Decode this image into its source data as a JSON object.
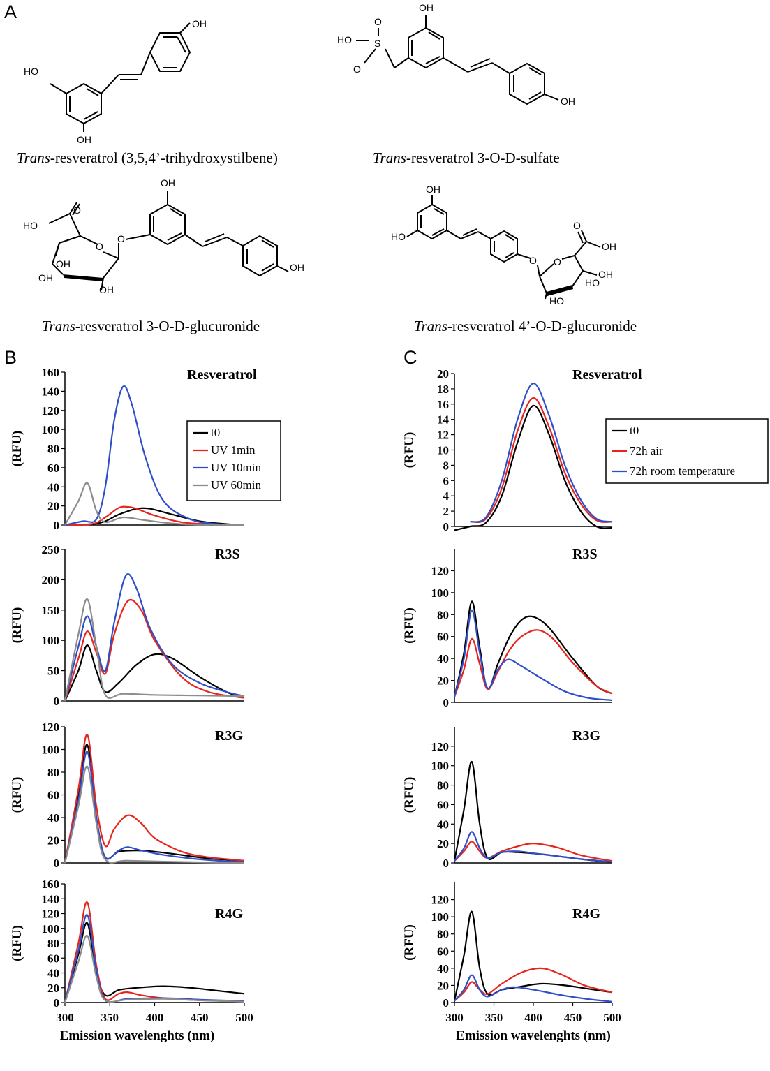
{
  "panels": {
    "a": "A",
    "b": "B",
    "c": "C"
  },
  "structures": [
    {
      "italic": "Trans",
      "rest": "-resveratrol (3,5,4’-trihydroxystilbene)",
      "atoms": [
        "OH",
        "HO",
        "OH"
      ]
    },
    {
      "italic": "Trans",
      "rest": "-resveratrol 3-O-D-sulfate",
      "atoms": [
        "OH",
        "HO",
        "S",
        "O",
        "O",
        "OH"
      ]
    },
    {
      "italic": "Trans",
      "rest": "-resveratrol 3-O-D-glucuronide",
      "atoms": [
        "OH",
        "HO",
        "O",
        "O",
        "O",
        "OH",
        "OH",
        "OH",
        "OH"
      ]
    },
    {
      "italic": "Trans",
      "rest": "-resveratrol 4’-O-D-glucuronide",
      "atoms": [
        "OH",
        "HO",
        "O",
        "O",
        "O",
        "OH",
        "HO",
        "HO",
        "OH"
      ]
    }
  ],
  "legend_b": [
    "t0",
    "UV  1min",
    "UV  10min",
    "UV  60min"
  ],
  "legend_c": [
    "t0",
    "72h air",
    "72h  room temperature"
  ],
  "colors": {
    "black": "#000000",
    "red": "#e8251c",
    "blue": "#2f4fc8",
    "gray": "#8c8c8c"
  },
  "chart_data": [
    {
      "type": "line",
      "panel": "B",
      "title": "Resveratrol",
      "xlabel": "",
      "ylabel": "(RFU)",
      "xlim": [
        300,
        500
      ],
      "ylim": [
        0,
        160
      ],
      "yticks": [
        "0",
        "20",
        "40",
        "60",
        "80",
        "100",
        "120",
        "140",
        "160"
      ],
      "series": [
        {
          "name": "t0",
          "color": "#000000",
          "x": [
            300,
            330,
            345,
            360,
            380,
            395,
            420,
            450,
            480,
            500
          ],
          "y": [
            0,
            1,
            4,
            11,
            17,
            17,
            11,
            4,
            1,
            0
          ]
        },
        {
          "name": "UV  1min",
          "color": "#e8251c",
          "x": [
            300,
            330,
            345,
            360,
            370,
            380,
            400,
            430,
            460,
            500
          ],
          "y": [
            0,
            1,
            8,
            18,
            19,
            17,
            10,
            3,
            1,
            0
          ]
        },
        {
          "name": "UV  10min",
          "color": "#2f4fc8",
          "x": [
            300,
            320,
            335,
            345,
            355,
            365,
            375,
            390,
            410,
            440,
            470,
            500
          ],
          "y": [
            0,
            4,
            6,
            40,
            110,
            145,
            125,
            70,
            25,
            6,
            1,
            0
          ]
        },
        {
          "name": "UV  60min",
          "color": "#8c8c8c",
          "x": [
            300,
            315,
            325,
            335,
            345,
            365,
            390,
            430,
            500
          ],
          "y": [
            0,
            25,
            44,
            15,
            3,
            8,
            5,
            1,
            0
          ]
        }
      ]
    },
    {
      "type": "line",
      "panel": "B",
      "title": "R3S",
      "xlabel": "",
      "ylabel": "(RFU)",
      "xlim": [
        300,
        500
      ],
      "ylim": [
        0,
        250
      ],
      "yticks": [
        "0",
        "50",
        "100",
        "150",
        "200",
        "250"
      ],
      "series": [
        {
          "name": "t0",
          "color": "#000000",
          "x": [
            300,
            315,
            325,
            335,
            345,
            360,
            380,
            400,
            420,
            450,
            480,
            500
          ],
          "y": [
            0,
            50,
            92,
            50,
            15,
            30,
            60,
            77,
            70,
            40,
            15,
            5
          ]
        },
        {
          "name": "UV  1min",
          "color": "#e8251c",
          "x": [
            300,
            315,
            325,
            335,
            345,
            355,
            370,
            385,
            400,
            430,
            460,
            500
          ],
          "y": [
            0,
            70,
            115,
            80,
            45,
            110,
            165,
            150,
            100,
            40,
            15,
            5
          ]
        },
        {
          "name": "UV  10min",
          "color": "#2f4fc8",
          "x": [
            300,
            315,
            325,
            335,
            345,
            355,
            368,
            380,
            395,
            420,
            450,
            480,
            500
          ],
          "y": [
            0,
            90,
            140,
            90,
            50,
            130,
            207,
            185,
            120,
            60,
            30,
            15,
            8
          ]
        },
        {
          "name": "UV  60min",
          "color": "#8c8c8c",
          "x": [
            300,
            315,
            325,
            335,
            345,
            365,
            400,
            450,
            500
          ],
          "y": [
            0,
            110,
            168,
            90,
            10,
            12,
            10,
            9,
            8
          ]
        }
      ]
    },
    {
      "type": "line",
      "panel": "B",
      "title": "R3G",
      "xlabel": "",
      "ylabel": "(RFU)",
      "xlim": [
        300,
        500
      ],
      "ylim": [
        0,
        120
      ],
      "yticks": [
        "0",
        "20",
        "40",
        "60",
        "80",
        "100",
        "120"
      ],
      "series": [
        {
          "name": "t0",
          "color": "#000000",
          "x": [
            300,
            315,
            325,
            335,
            345,
            360,
            380,
            400,
            430,
            460,
            500
          ],
          "y": [
            0,
            60,
            104,
            40,
            5,
            10,
            11,
            10,
            7,
            4,
            2
          ]
        },
        {
          "name": "UV  1min",
          "color": "#e8251c",
          "x": [
            300,
            315,
            325,
            335,
            345,
            355,
            370,
            385,
            400,
            430,
            460,
            500
          ],
          "y": [
            0,
            65,
            113,
            50,
            15,
            30,
            42,
            35,
            22,
            10,
            5,
            2
          ]
        },
        {
          "name": "UV  10min",
          "color": "#2f4fc8",
          "x": [
            300,
            315,
            325,
            335,
            345,
            360,
            370,
            385,
            410,
            440,
            470,
            500
          ],
          "y": [
            0,
            55,
            98,
            40,
            5,
            11,
            14,
            11,
            7,
            4,
            2,
            1
          ]
        },
        {
          "name": "UV  60min",
          "color": "#8c8c8c",
          "x": [
            300,
            315,
            325,
            335,
            345,
            370,
            420,
            500
          ],
          "y": [
            0,
            50,
            85,
            35,
            3,
            2,
            1,
            0
          ]
        }
      ]
    },
    {
      "type": "line",
      "panel": "B",
      "title": "R4G",
      "xlabel": "Emission wavelenghts (nm)",
      "ylabel": "(RFU)",
      "xlim": [
        300,
        500
      ],
      "ylim": [
        0,
        160
      ],
      "yticks": [
        "0",
        "20",
        "40",
        "60",
        "80",
        "100",
        "120",
        "140",
        "160"
      ],
      "xticks": [
        "300",
        "350",
        "400",
        "450",
        "500"
      ],
      "series": [
        {
          "name": "t0",
          "color": "#000000",
          "x": [
            300,
            315,
            325,
            335,
            345,
            360,
            380,
            410,
            440,
            470,
            500
          ],
          "y": [
            0,
            65,
            107,
            40,
            10,
            17,
            20,
            22,
            20,
            16,
            12
          ]
        },
        {
          "name": "UV  1min",
          "color": "#e8251c",
          "x": [
            300,
            315,
            325,
            335,
            345,
            360,
            370,
            385,
            410,
            450,
            500
          ],
          "y": [
            0,
            80,
            135,
            50,
            5,
            12,
            14,
            10,
            6,
            3,
            2
          ]
        },
        {
          "name": "UV  10min",
          "color": "#2f4fc8",
          "x": [
            300,
            315,
            325,
            335,
            345,
            370,
            410,
            450,
            500
          ],
          "y": [
            0,
            70,
            118,
            45,
            3,
            5,
            6,
            4,
            2
          ]
        },
        {
          "name": "UV  60min",
          "color": "#8c8c8c",
          "x": [
            300,
            315,
            325,
            335,
            345,
            370,
            410,
            450,
            500
          ],
          "y": [
            0,
            55,
            90,
            35,
            3,
            4,
            5,
            3,
            1
          ]
        }
      ]
    },
    {
      "type": "line",
      "panel": "C",
      "title": "Resveratrol",
      "xlabel": "",
      "ylabel": "(RFU)",
      "xlim": [
        300,
        500
      ],
      "ylim": [
        0,
        20
      ],
      "yticks": [
        "0",
        "2",
        "4",
        "6",
        "8",
        "10",
        "12",
        "14",
        "16",
        "18",
        "20"
      ],
      "series": [
        {
          "name": "t0",
          "color": "#000000",
          "x": [
            300,
            320,
            340,
            360,
            380,
            400,
            420,
            440,
            460,
            480,
            500
          ],
          "y": [
            -0.5,
            0,
            0.5,
            4,
            11,
            15.8,
            12,
            6,
            2,
            0,
            -0.2
          ]
        },
        {
          "name": "72h air",
          "color": "#e8251c",
          "x": [
            320,
            340,
            360,
            380,
            400,
            420,
            440,
            460,
            480,
            500
          ],
          "y": [
            0.6,
            1,
            5,
            12.5,
            16.8,
            13,
            7,
            3,
            0.8,
            0.6
          ]
        },
        {
          "name": "72h  room temperature",
          "color": "#2f4fc8",
          "x": [
            320,
            340,
            360,
            380,
            400,
            420,
            440,
            460,
            480,
            500
          ],
          "y": [
            0.6,
            1.2,
            6,
            14,
            18.7,
            14.5,
            8,
            3.5,
            1,
            0.6
          ]
        }
      ]
    },
    {
      "type": "line",
      "panel": "C",
      "title": "R3S",
      "xlabel": "",
      "ylabel": "(RFU)",
      "xlim": [
        300,
        500
      ],
      "ylim": [
        0,
        140
      ],
      "yticks": [
        "0",
        "20",
        "40",
        "60",
        "80",
        "100",
        "120"
      ],
      "series": [
        {
          "name": "t0",
          "color": "#000000",
          "x": [
            300,
            312,
            322,
            332,
            342,
            355,
            370,
            385,
            400,
            420,
            450,
            480,
            500
          ],
          "y": [
            5,
            45,
            92,
            50,
            12,
            35,
            60,
            75,
            78,
            68,
            40,
            15,
            8
          ]
        },
        {
          "name": "72h air",
          "color": "#e8251c",
          "x": [
            300,
            312,
            322,
            332,
            342,
            355,
            370,
            385,
            405,
            425,
            450,
            480,
            500
          ],
          "y": [
            5,
            30,
            58,
            35,
            12,
            28,
            48,
            60,
            66,
            58,
            36,
            15,
            8
          ]
        },
        {
          "name": "72h  room temperature",
          "color": "#2f4fc8",
          "x": [
            300,
            312,
            322,
            332,
            342,
            355,
            368,
            385,
            410,
            440,
            470,
            500
          ],
          "y": [
            5,
            40,
            84,
            45,
            13,
            30,
            39,
            33,
            22,
            10,
            4,
            2
          ]
        }
      ]
    },
    {
      "type": "line",
      "panel": "C",
      "title": "R3G",
      "xlabel": "",
      "ylabel": "(RFU)",
      "xlim": [
        300,
        500
      ],
      "ylim": [
        0,
        140
      ],
      "yticks": [
        "0",
        "20",
        "40",
        "60",
        "80",
        "100",
        "120"
      ],
      "series": [
        {
          "name": "t0",
          "color": "#000000",
          "x": [
            300,
            312,
            322,
            332,
            342,
            360,
            380,
            410,
            440,
            470,
            500
          ],
          "y": [
            2,
            55,
            104,
            40,
            5,
            11,
            11,
            9,
            6,
            3,
            1
          ]
        },
        {
          "name": "72h air",
          "color": "#e8251c",
          "x": [
            300,
            312,
            322,
            332,
            342,
            360,
            380,
            400,
            430,
            460,
            500
          ],
          "y": [
            2,
            12,
            22,
            12,
            5,
            12,
            17,
            20,
            16,
            8,
            2
          ]
        },
        {
          "name": "72h  room temperature",
          "color": "#2f4fc8",
          "x": [
            300,
            312,
            322,
            332,
            342,
            360,
            380,
            400,
            430,
            460,
            500
          ],
          "y": [
            2,
            15,
            32,
            15,
            5,
            11,
            12,
            10,
            7,
            4,
            1
          ]
        }
      ]
    },
    {
      "type": "line",
      "panel": "C",
      "title": "R4G",
      "xlabel": "Emission wavelenghts (nm)",
      "ylabel": "(RFU)",
      "xlim": [
        300,
        500
      ],
      "ylim": [
        0,
        140
      ],
      "yticks": [
        "0",
        "20",
        "40",
        "60",
        "80",
        "100",
        "120"
      ],
      "xticks": [
        "300",
        "350",
        "400",
        "450",
        "500"
      ],
      "series": [
        {
          "name": "t0",
          "color": "#000000",
          "x": [
            300,
            312,
            322,
            332,
            342,
            360,
            380,
            410,
            440,
            470,
            500
          ],
          "y": [
            2,
            55,
            106,
            40,
            10,
            15,
            18,
            22,
            20,
            16,
            12
          ]
        },
        {
          "name": "72h air",
          "color": "#e8251c",
          "x": [
            300,
            312,
            322,
            332,
            342,
            360,
            385,
            410,
            435,
            465,
            500
          ],
          "y": [
            2,
            12,
            24,
            15,
            10,
            22,
            35,
            40,
            33,
            20,
            12
          ]
        },
        {
          "name": "72h  room temperature",
          "color": "#2f4fc8",
          "x": [
            300,
            312,
            322,
            332,
            342,
            360,
            375,
            400,
            440,
            470,
            500
          ],
          "y": [
            2,
            15,
            32,
            15,
            7,
            15,
            18,
            15,
            8,
            4,
            1
          ]
        }
      ]
    }
  ]
}
